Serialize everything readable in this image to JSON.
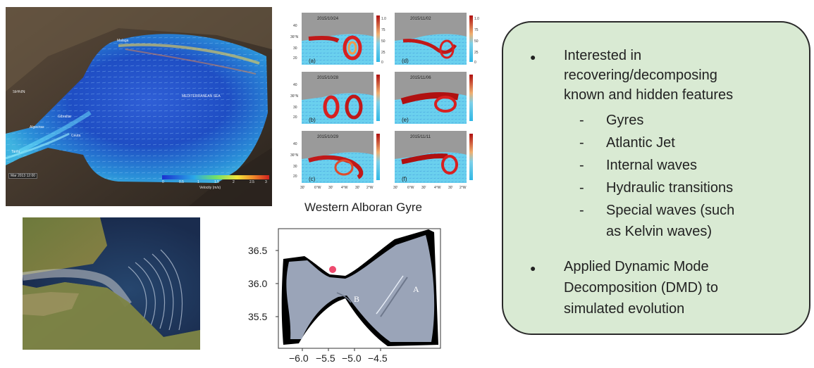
{
  "slide": {
    "model_labels": {
      "spain": "SPAIN",
      "malaga": "Malaga",
      "sea": "MEDITERRANEAN SEA",
      "gibraltar": "Gibraltar",
      "algeciras": "Algeciras",
      "ceuta": "Ceuta",
      "tarifa": "Tarifa",
      "timestamp": "Mar 2013 12:00",
      "scale_ticks": [
        "0",
        "0.5",
        "1",
        "1.5",
        "2",
        "2.5",
        "3"
      ],
      "scale_unit": "Velocity (m/s)"
    },
    "gyre_panels": [
      {
        "date": "2015/10/24",
        "letter": "(a)"
      },
      {
        "date": "2015/11/02",
        "letter": "(d)"
      },
      {
        "date": "2015/10/28",
        "letter": "(b)"
      },
      {
        "date": "2015/11/06",
        "letter": "(e)"
      },
      {
        "date": "2015/10/29",
        "letter": "(c)"
      },
      {
        "date": "2015/11/11",
        "letter": "(f)"
      }
    ],
    "gyre_yticks": [
      "40",
      "36°N",
      "30",
      "20"
    ],
    "gyre_cticks": [
      "1.0",
      "75",
      "50",
      "25",
      "0"
    ],
    "gyre_xticks": [
      "30'",
      "6°W",
      "30'",
      "4°W",
      "30'",
      "2°W"
    ],
    "gyre_caption": "Western Alboran Gyre",
    "sim_plot": {
      "yticks": [
        "36.5",
        "36.0",
        "35.5"
      ],
      "xticks": [
        "−6.0",
        "−5.5",
        "−5.0",
        "−4.5"
      ],
      "label_a": "A",
      "label_b": "B"
    },
    "info": {
      "bullet_symbol": "●",
      "dash_symbol": "-",
      "bullet1_lines": [
        "Interested in",
        "recovering/decomposing",
        "known and hidden features"
      ],
      "sub_items": [
        "Gyres",
        "Atlantic Jet",
        "Internal waves",
        "Hydraulic transitions",
        "Special waves (such",
        "as Kelvin waves)"
      ],
      "bullet2_lines": [
        "Applied Dynamic Mode",
        "Decomposition (DMD) to",
        "simulated evolution"
      ]
    }
  }
}
